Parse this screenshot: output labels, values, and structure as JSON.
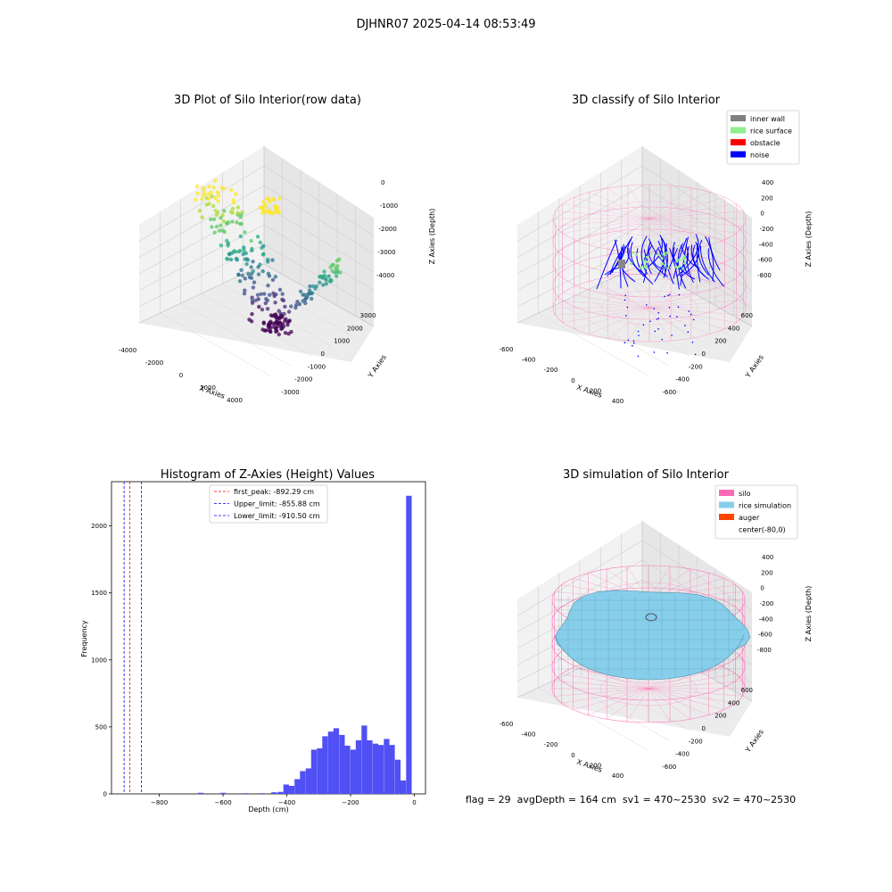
{
  "figure": {
    "suptitle": "DJHNR07 2025-04-14 08:53:49",
    "footer": "flag = 29  avgDepth = 164 cm  sv1 = 470~2530  sv2 = 470~2530"
  },
  "chart_data": [
    {
      "type": "scatter",
      "title": "3D Plot of Silo Interior(row data)",
      "projection": "3d",
      "xlabel": "X Axies",
      "ylabel": "Y Axies",
      "zlabel": "Z Axies (Depth)",
      "x_ticks": [
        "-4000",
        "-2000",
        "0",
        "2000",
        "4000"
      ],
      "y_ticks": [
        "-3000",
        "-2000",
        "-1000",
        "0",
        "1000",
        "2000",
        "3000"
      ],
      "z_ticks": [
        "-4000",
        "-3000",
        "-2000",
        "-1000",
        "0"
      ],
      "colormap": "viridis",
      "grid": true
    },
    {
      "type": "scatter",
      "title": "3D classify of Silo Interior",
      "projection": "3d",
      "xlabel": "X Axies",
      "ylabel": "Y Axies",
      "zlabel": "Z Axies (Depth)",
      "x_ticks": [
        "-600",
        "-400",
        "-200",
        "0",
        "200",
        "400"
      ],
      "y_ticks": [
        "-600",
        "-400",
        "-200",
        "0",
        "200",
        "400",
        "600"
      ],
      "z_ticks": [
        "-800",
        "-600",
        "-400",
        "-200",
        "0",
        "200",
        "400"
      ],
      "legend": [
        {
          "label": "inner wall",
          "color": "#808080"
        },
        {
          "label": "rice surface",
          "color": "#90ee90"
        },
        {
          "label": "obstacle",
          "color": "#ff0000"
        },
        {
          "label": "noise",
          "color": "#0000ff"
        }
      ],
      "legend_position": "top-right",
      "grid": true
    },
    {
      "type": "bar",
      "title": "Histogram of Z-Axies (Height) Values",
      "xlabel": "Depth (cm)",
      "ylabel": "Frequency",
      "xlim": [
        -950,
        35
      ],
      "ylim": [
        0,
        2330
      ],
      "x_ticks": [
        -800,
        -600,
        -400,
        -200,
        0
      ],
      "x_tick_labels": [
        "−800",
        "−600",
        "−400",
        "−200",
        "0"
      ],
      "y_ticks": [
        0,
        500,
        1000,
        1500,
        2000
      ],
      "bar_color": "#5050f5",
      "bin_width": 17.5,
      "bins": [
        {
          "x": -670,
          "count": 8
        },
        {
          "x": -600,
          "count": 8
        },
        {
          "x": -530,
          "count": 5
        },
        {
          "x": -480,
          "count": 5
        },
        {
          "x": -440,
          "count": 12
        },
        {
          "x": -420,
          "count": 15
        },
        {
          "x": -402,
          "count": 70
        },
        {
          "x": -385,
          "count": 60
        },
        {
          "x": -367,
          "count": 110
        },
        {
          "x": -350,
          "count": 170
        },
        {
          "x": -332,
          "count": 190
        },
        {
          "x": -315,
          "count": 330
        },
        {
          "x": -297,
          "count": 340
        },
        {
          "x": -280,
          "count": 430
        },
        {
          "x": -262,
          "count": 465
        },
        {
          "x": -245,
          "count": 490
        },
        {
          "x": -227,
          "count": 440
        },
        {
          "x": -210,
          "count": 360
        },
        {
          "x": -192,
          "count": 330
        },
        {
          "x": -175,
          "count": 400
        },
        {
          "x": -157,
          "count": 510
        },
        {
          "x": -140,
          "count": 400
        },
        {
          "x": -122,
          "count": 375
        },
        {
          "x": -105,
          "count": 365
        },
        {
          "x": -87,
          "count": 410
        },
        {
          "x": -70,
          "count": 365
        },
        {
          "x": -52,
          "count": 255
        },
        {
          "x": -35,
          "count": 100
        },
        {
          "x": -17,
          "count": 2225
        }
      ],
      "vlines": [
        {
          "label": "first_peak: -892.29 cm",
          "x": -892.29,
          "color": "#ff0000"
        },
        {
          "label": "Upper_limit: -855.88 cm",
          "x": -855.88,
          "color": "#0000ff"
        },
        {
          "label": "Lower_limit: -910.50 cm",
          "x": -910.5,
          "color": "#0000ff"
        }
      ],
      "legend_position": "top-center"
    },
    {
      "type": "surface",
      "title": "3D simulation of Silo Interior",
      "projection": "3d",
      "xlabel": "X Axies",
      "ylabel": "Y Axies",
      "zlabel": "Z Axies (Depth)",
      "x_ticks": [
        "-600",
        "-400",
        "-200",
        "0",
        "200",
        "400"
      ],
      "y_ticks": [
        "-600",
        "-400",
        "-200",
        "0",
        "200",
        "400",
        "600"
      ],
      "z_ticks": [
        "-800",
        "-600",
        "-400",
        "-200",
        "0",
        "200",
        "400"
      ],
      "legend": [
        {
          "label": "silo",
          "color": "#ff69b4"
        },
        {
          "label": "rice simulation",
          "color": "#87ceeb"
        },
        {
          "label": "auger",
          "color": "#ff4500"
        },
        {
          "label": "center(-80,0)",
          "color": ""
        }
      ],
      "legend_position": "top-right",
      "grid": true
    }
  ]
}
